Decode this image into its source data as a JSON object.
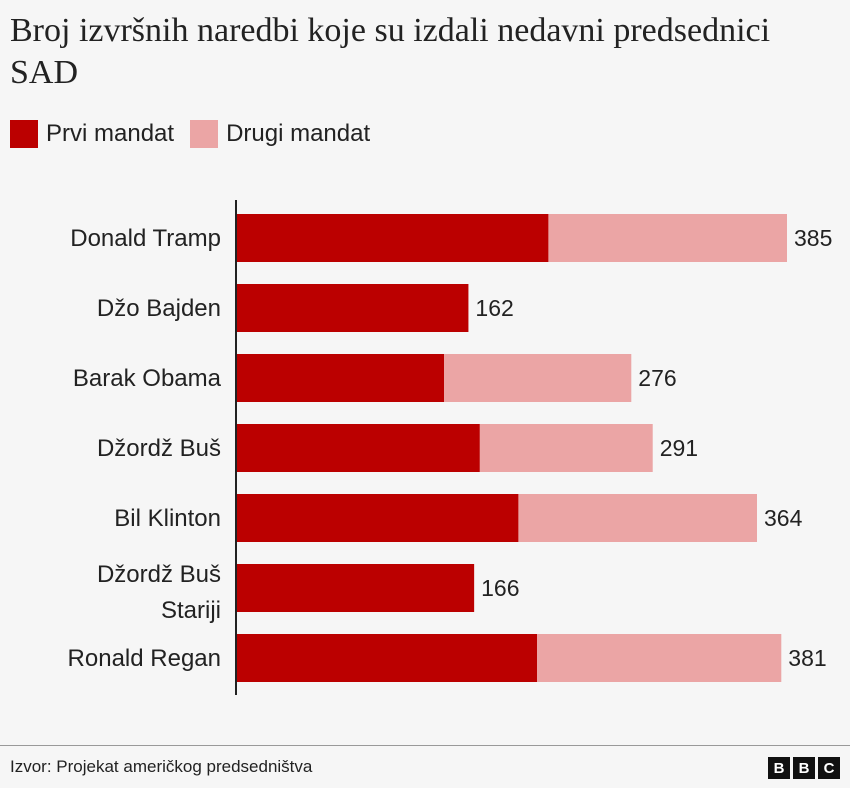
{
  "title": "Broj izvršnih naredbi koje su izdali nedavni predsednici SAD",
  "source": "Izvor: Projekat američkog predsedništva",
  "logo": "BBC",
  "chart_data": {
    "type": "bar",
    "orientation": "horizontal",
    "stacked": true,
    "categories": [
      "Donald Tramp",
      "Džo Bajden",
      "Barak Obama",
      "Džordž Buš",
      "Bil Klinton",
      "Džordž Buš Stariji",
      "Ronald Regan"
    ],
    "series": [
      {
        "name": "Prvi mandat",
        "color": "#bb0000",
        "values": [
          218,
          162,
          145,
          170,
          197,
          166,
          210
        ]
      },
      {
        "name": "Drugi mandat",
        "color": "#eba5a5",
        "values": [
          167,
          0,
          131,
          121,
          167,
          0,
          171
        ]
      }
    ],
    "totals": [
      385,
      162,
      276,
      291,
      364,
      166,
      381
    ],
    "xlim": [
      0,
      385
    ],
    "legend": "top-left",
    "grid": false
  }
}
